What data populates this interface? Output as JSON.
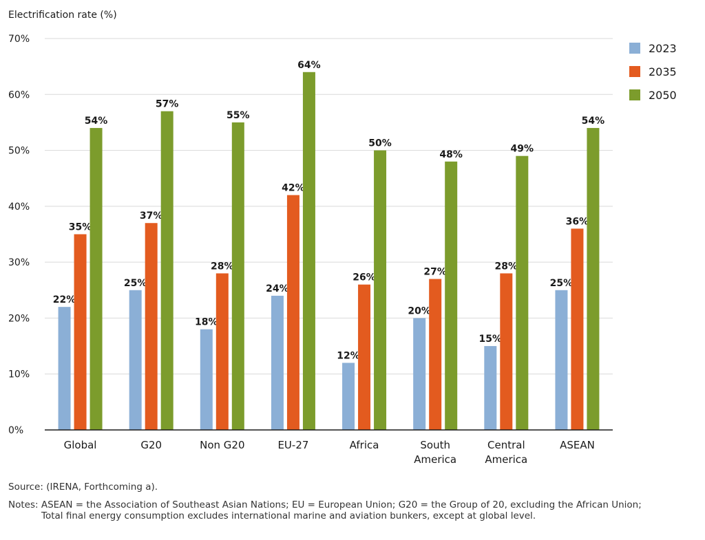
{
  "chart_data": {
    "type": "bar",
    "ylabel": "Electrification rate (%)",
    "ylim": [
      0,
      70
    ],
    "yticks": [
      "0%",
      "10%",
      "20%",
      "30%",
      "40%",
      "50%",
      "60%",
      "70%"
    ],
    "grid": true,
    "legend_position": "right",
    "categories": [
      [
        "Global"
      ],
      [
        "G20"
      ],
      [
        "Non G20"
      ],
      [
        "EU-27"
      ],
      [
        "Africa"
      ],
      [
        "South",
        "America"
      ],
      [
        "Central",
        "America"
      ],
      [
        "ASEAN"
      ]
    ],
    "series": [
      {
        "name": "2023",
        "color": "#8bafd6",
        "values": [
          22,
          25,
          18,
          24,
          12,
          20,
          15,
          25
        ]
      },
      {
        "name": "2035",
        "color": "#e35b1f",
        "values": [
          35,
          37,
          28,
          42,
          26,
          27,
          28,
          36
        ]
      },
      {
        "name": "2050",
        "color": "#7c9c2c",
        "values": [
          54,
          57,
          55,
          64,
          50,
          48,
          49,
          54
        ]
      }
    ]
  },
  "footer": {
    "source": "Source: (IRENA, Forthcoming a).",
    "notes_line1": "Notes: ASEAN = the Association of Southeast Asian Nations; EU = European Union; G20 = the Group of 20, excluding the African Union;",
    "notes_line2": "Total final energy consumption excludes international marine and aviation bunkers, except at global level."
  }
}
